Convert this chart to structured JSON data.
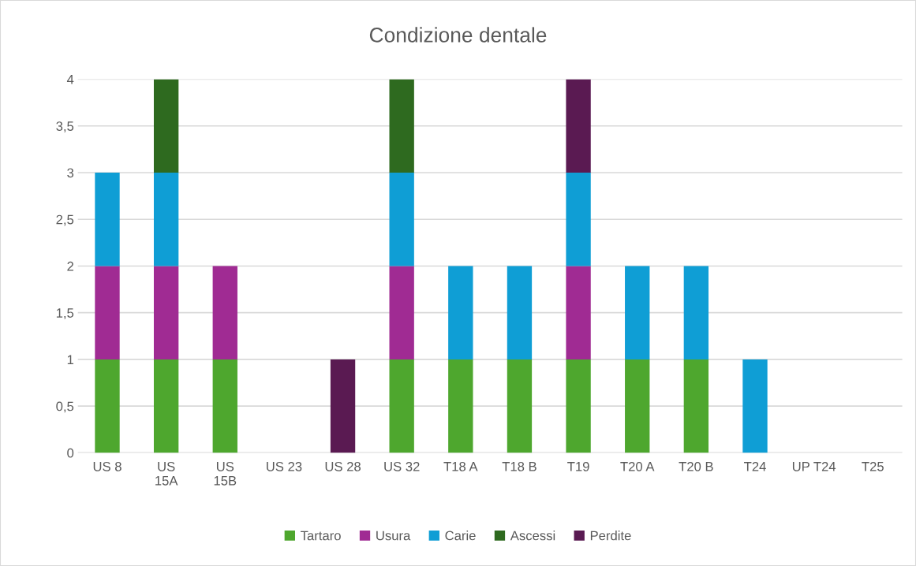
{
  "chart_data": {
    "type": "bar",
    "title": "Condizione dentale",
    "stacked": true,
    "grid": "y",
    "legend": "bottom",
    "categories": [
      "US 8",
      "US\n15A",
      "US\n15B",
      "US 23",
      "US 28",
      "US 32",
      "T18 A",
      "T18 B",
      "T19",
      "T20 A",
      "T20 B",
      "T24",
      "UP T24",
      "T25"
    ],
    "series": [
      {
        "name": "Tartaro",
        "color": "#4ea72e",
        "values": [
          1,
          1,
          1,
          null,
          null,
          1,
          1,
          1,
          1,
          1,
          1,
          null,
          null,
          null
        ]
      },
      {
        "name": "Usura",
        "color": "#a02b93",
        "values": [
          1,
          1,
          1,
          null,
          null,
          1,
          null,
          null,
          1,
          null,
          null,
          null,
          null,
          null
        ]
      },
      {
        "name": "Carie",
        "color": "#0f9ed5",
        "values": [
          1,
          1,
          null,
          null,
          null,
          1,
          1,
          1,
          1,
          1,
          1,
          1,
          null,
          null
        ]
      },
      {
        "name": "Ascessi",
        "color": "#2e6a1f",
        "values": [
          null,
          1,
          null,
          null,
          null,
          1,
          null,
          null,
          null,
          null,
          null,
          null,
          null,
          null
        ]
      },
      {
        "name": "Perdite",
        "color": "#5a1a52",
        "values": [
          null,
          null,
          null,
          null,
          1,
          null,
          null,
          null,
          1,
          null,
          null,
          null,
          null,
          null
        ]
      }
    ],
    "ylim": [
      0,
      4
    ],
    "yticks": [
      0,
      {
        "value": 0.5,
        "label": "0,5"
      },
      1,
      {
        "value": 1.5,
        "label": "1,5"
      },
      2,
      {
        "value": 2.5,
        "label": "2,5"
      },
      3,
      {
        "value": 3.5,
        "label": "3,5"
      },
      4
    ]
  }
}
